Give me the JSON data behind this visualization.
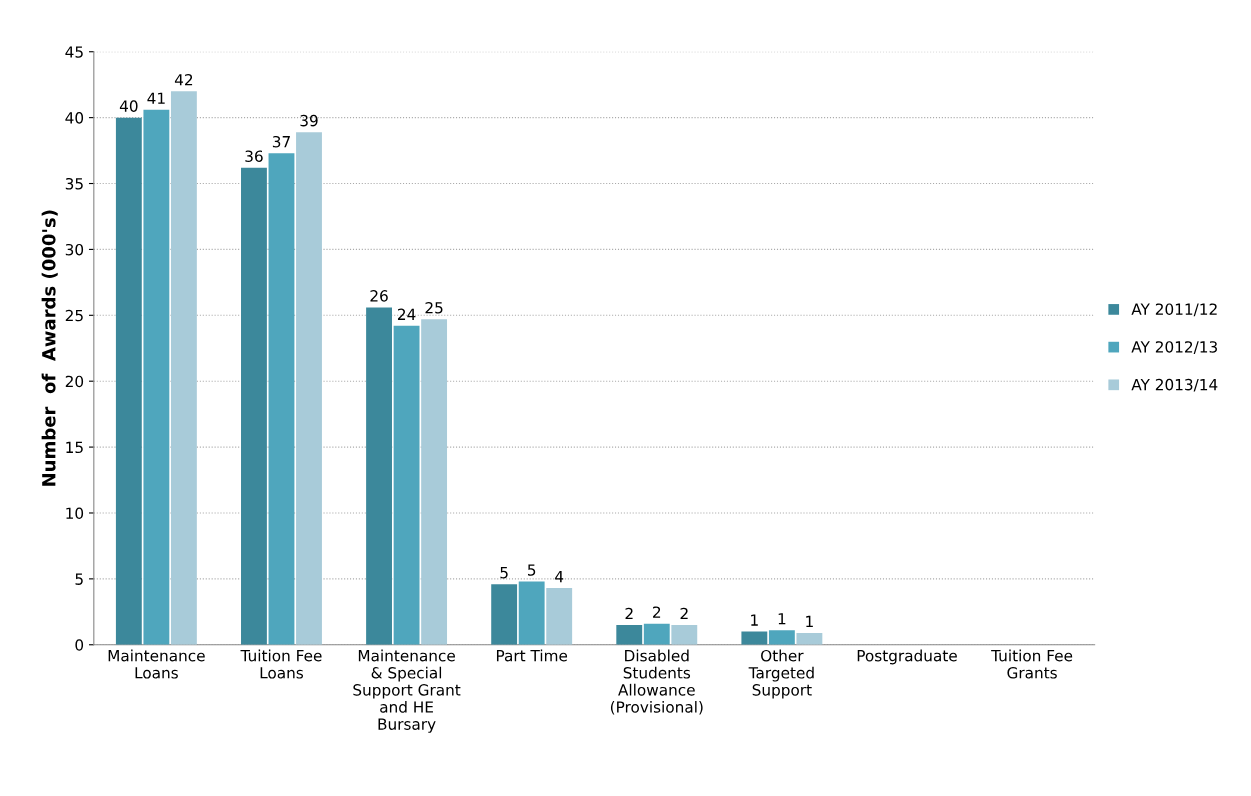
{
  "chart_data": {
    "type": "bar",
    "ylabel": "Number  of  Awards (000's)",
    "categories": [
      "Maintenance\nLoans",
      "Tuition Fee\nLoans",
      "Maintenance\n& Special\nSupport Grant\nand HE\nBursary",
      "Part Time",
      "Disabled\nStudents\nAllowance\n(Provisional)",
      "Other\nTargeted\nSupport",
      "Postgraduate",
      "Tuition Fee\nGrants"
    ],
    "series": [
      {
        "name": "AY 2011/12",
        "color": "#3c889b",
        "values": [
          40.0,
          36.2,
          25.6,
          4.6,
          1.5,
          1.0,
          0,
          0
        ],
        "value_labels": [
          "40",
          "36",
          "26",
          "5",
          "2",
          "1",
          null,
          null
        ]
      },
      {
        "name": "AY 2012/13",
        "color": "#4fa6bd",
        "values": [
          40.6,
          37.3,
          24.2,
          4.8,
          1.6,
          1.1,
          0,
          0
        ],
        "value_labels": [
          "41",
          "37",
          "24",
          "5",
          "2",
          "1",
          null,
          null
        ]
      },
      {
        "name": "AY 2013/14",
        "color": "#a8cbd9",
        "values": [
          42.0,
          38.9,
          24.7,
          4.3,
          1.5,
          0.9,
          0,
          0
        ],
        "value_labels": [
          "42",
          "39",
          "25",
          "4",
          "2",
          "1",
          null,
          null
        ]
      }
    ],
    "ylim": [
      0,
      45
    ],
    "yticks": [
      0,
      5,
      10,
      15,
      20,
      25,
      30,
      35,
      40,
      45
    ],
    "grid": "y",
    "legend": "right"
  }
}
